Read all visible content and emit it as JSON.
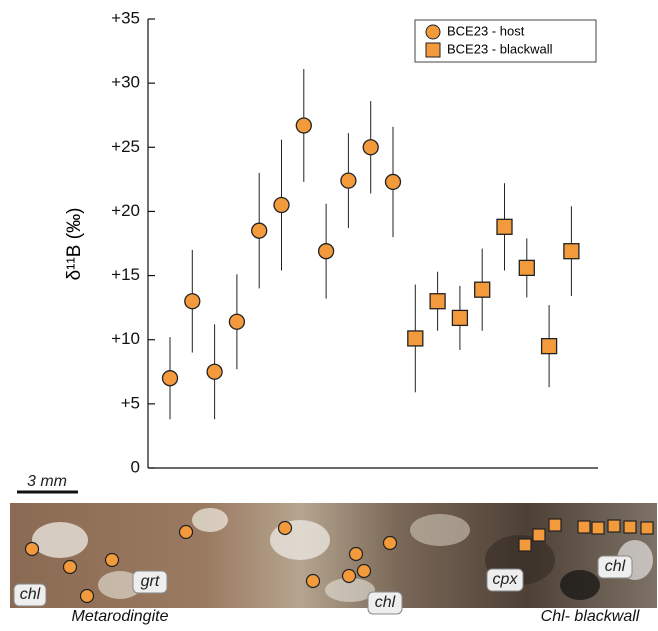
{
  "chart_data": {
    "type": "scatter",
    "y_label": "δ¹¹B (‰)",
    "categories": [
      null,
      null,
      null,
      null,
      null,
      null,
      null,
      null,
      null,
      null,
      null,
      null,
      null,
      null,
      null,
      null,
      null,
      null,
      null
    ],
    "series": [
      {
        "name": "BCE23 - host",
        "marker": "circle",
        "color": "#f39a3c",
        "values": [
          7.0,
          13.0,
          7.5,
          11.4,
          18.5,
          20.5,
          26.7,
          16.9,
          22.4,
          25.0,
          22.3,
          null,
          null,
          null,
          null,
          null,
          null,
          null,
          null
        ],
        "errors": [
          3.2,
          4.0,
          3.7,
          3.7,
          4.5,
          5.1,
          4.4,
          3.7,
          3.7,
          3.6,
          4.3,
          null,
          null,
          null,
          null,
          null,
          null,
          null,
          null
        ]
      },
      {
        "name": "BCE23 - blackwall",
        "marker": "square",
        "color": "#f39a3c",
        "values": [
          null,
          null,
          null,
          null,
          null,
          null,
          null,
          null,
          null,
          null,
          null,
          10.1,
          13.0,
          11.7,
          13.9,
          18.8,
          15.6,
          9.5,
          16.9
        ],
        "errors": [
          null,
          null,
          null,
          null,
          null,
          null,
          null,
          null,
          null,
          null,
          null,
          4.2,
          2.3,
          2.5,
          3.2,
          3.4,
          2.3,
          3.2,
          3.5
        ]
      }
    ],
    "ylim": [
      0,
      35
    ],
    "yticks": [
      0,
      {
        "value": 5,
        "label": "+5"
      },
      {
        "value": 10,
        "label": "+10"
      },
      {
        "value": 15,
        "label": "+15"
      },
      {
        "value": 20,
        "label": "+20"
      },
      {
        "value": 25,
        "label": "+25"
      },
      {
        "value": 30,
        "label": "+30"
      },
      {
        "value": 35,
        "label": "+35"
      }
    ],
    "legend": "upper right",
    "grid": false
  },
  "photo": {
    "scale_bar": "3 mm",
    "mineral_labels": [
      "chl",
      "grt",
      "chl",
      "cpx",
      "chl"
    ],
    "zone_labels": [
      "Metarodingite",
      "Chl- blackwall"
    ]
  }
}
